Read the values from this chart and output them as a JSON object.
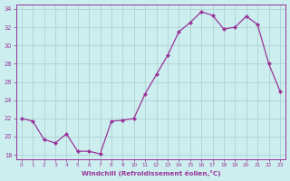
{
  "hours": [
    0,
    1,
    2,
    3,
    4,
    5,
    6,
    7,
    8,
    9,
    10,
    11,
    12,
    13,
    14,
    15,
    16,
    17,
    18,
    19,
    20,
    21,
    22,
    23
  ],
  "values": [
    22.0,
    21.7,
    19.7,
    19.3,
    20.3,
    18.4,
    18.4,
    18.1,
    21.7,
    21.8,
    22.0,
    24.7,
    26.8,
    28.9,
    31.5,
    32.5,
    33.7,
    33.3,
    31.8,
    32.0,
    33.2,
    32.3,
    28.0,
    25.0
  ],
  "line_color": "#993399",
  "marker_color": "#993399",
  "bg_color": "#cceeee",
  "grid_color": "#aacccc",
  "xlabel": "Windchill (Refroidissement éolien,°C)",
  "ylim": [
    17.5,
    34.5
  ],
  "yticks": [
    18,
    20,
    22,
    24,
    26,
    28,
    30,
    32,
    34
  ],
  "xtick_labels": [
    "0",
    "1",
    "2",
    "3",
    "4",
    "5",
    "6",
    "7",
    "8",
    "9",
    "10",
    "11",
    "12",
    "13",
    "14",
    "15",
    "16",
    "17",
    "18",
    "19",
    "20",
    "21",
    "22",
    "23"
  ],
  "tick_color": "#993399",
  "xlabel_color": "#993399",
  "spine_color": "#993399"
}
